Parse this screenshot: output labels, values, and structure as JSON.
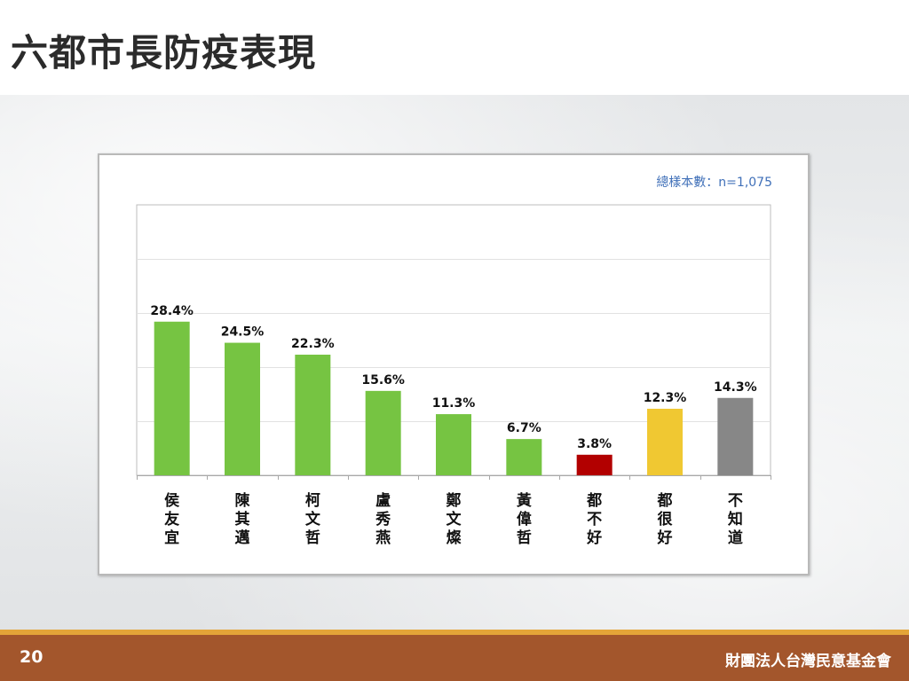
{
  "slide": {
    "title": "六都市長防疫表現",
    "page_number": "20",
    "organization": "財團法人台灣民意基金會"
  },
  "chart_data": {
    "type": "bar",
    "title": "",
    "xlabel": "",
    "ylabel": "",
    "sample_size_label": "總樣本數：n=1,075",
    "ylim": [
      0,
      50
    ],
    "grid": true,
    "legend": "none",
    "value_suffix": "%",
    "categories": [
      "侯友宜",
      "陳其邁",
      "柯文哲",
      "盧秀燕",
      "鄭文燦",
      "黃偉哲",
      "都不好",
      "都很好",
      "不知道"
    ],
    "values": [
      28.4,
      24.5,
      22.3,
      15.6,
      11.3,
      6.7,
      3.8,
      12.3,
      14.3
    ],
    "colors": [
      "#76c442",
      "#76c442",
      "#76c442",
      "#76c442",
      "#76c442",
      "#76c442",
      "#b20000",
      "#f0c832",
      "#878787"
    ]
  }
}
